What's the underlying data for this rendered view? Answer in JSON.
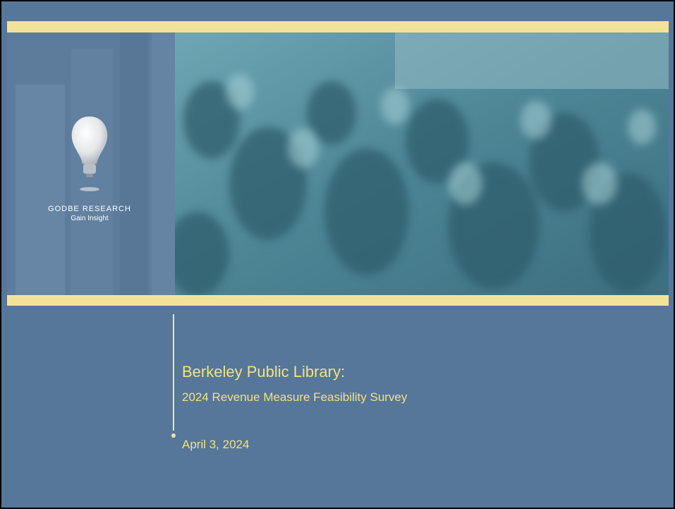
{
  "logo": {
    "name": "GODBE RESEARCH",
    "tagline": "Gain Insight"
  },
  "title": {
    "main": "Berkeley Public Library:",
    "subtitle": "2024 Revenue Measure Feasibility Survey"
  },
  "date": "April 3, 2024"
}
